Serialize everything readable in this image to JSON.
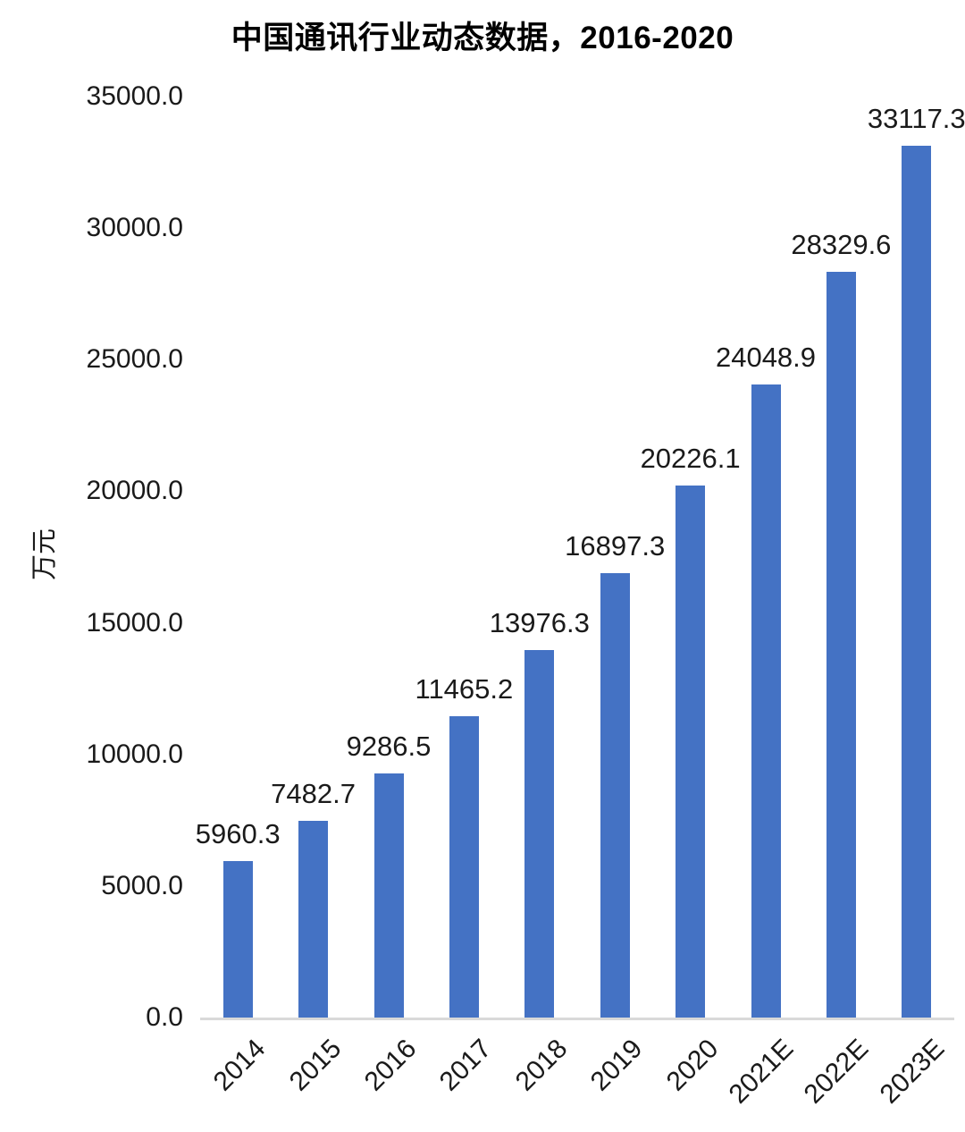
{
  "title": "中国通讯行业动态数据，2016-2020",
  "y_axis": {
    "title": "万元",
    "ticks": [
      "35000.0",
      "30000.0",
      "25000.0",
      "20000.0",
      "15000.0",
      "10000.0",
      "5000.0",
      "0.0"
    ]
  },
  "chart_data": {
    "type": "bar",
    "title": "中国通讯行业动态数据，2016-2020",
    "categories": [
      "2014",
      "2015",
      "2016",
      "2017",
      "2018",
      "2019",
      "2020",
      "2021E",
      "2022E",
      "2023E"
    ],
    "values": [
      5960.3,
      7482.7,
      9286.5,
      11465.2,
      13976.3,
      16897.3,
      20226.1,
      24048.9,
      28329.6,
      33117.3
    ],
    "data_labels": [
      "5960.3",
      "7482.7",
      "9286.5",
      "11465.2",
      "13976.3",
      "16897.3",
      "20226.1",
      "24048.9",
      "28329.6",
      "33117.3"
    ],
    "xlabel": "",
    "ylabel": "万元",
    "ylim": [
      0,
      35000
    ],
    "ytick_step": 5000,
    "grid": false,
    "legend": false,
    "bar_color": "#4472c4",
    "axis_line_color": "#d9d9d9",
    "text_color": "#1a1a1a",
    "title_color": "#000000"
  }
}
